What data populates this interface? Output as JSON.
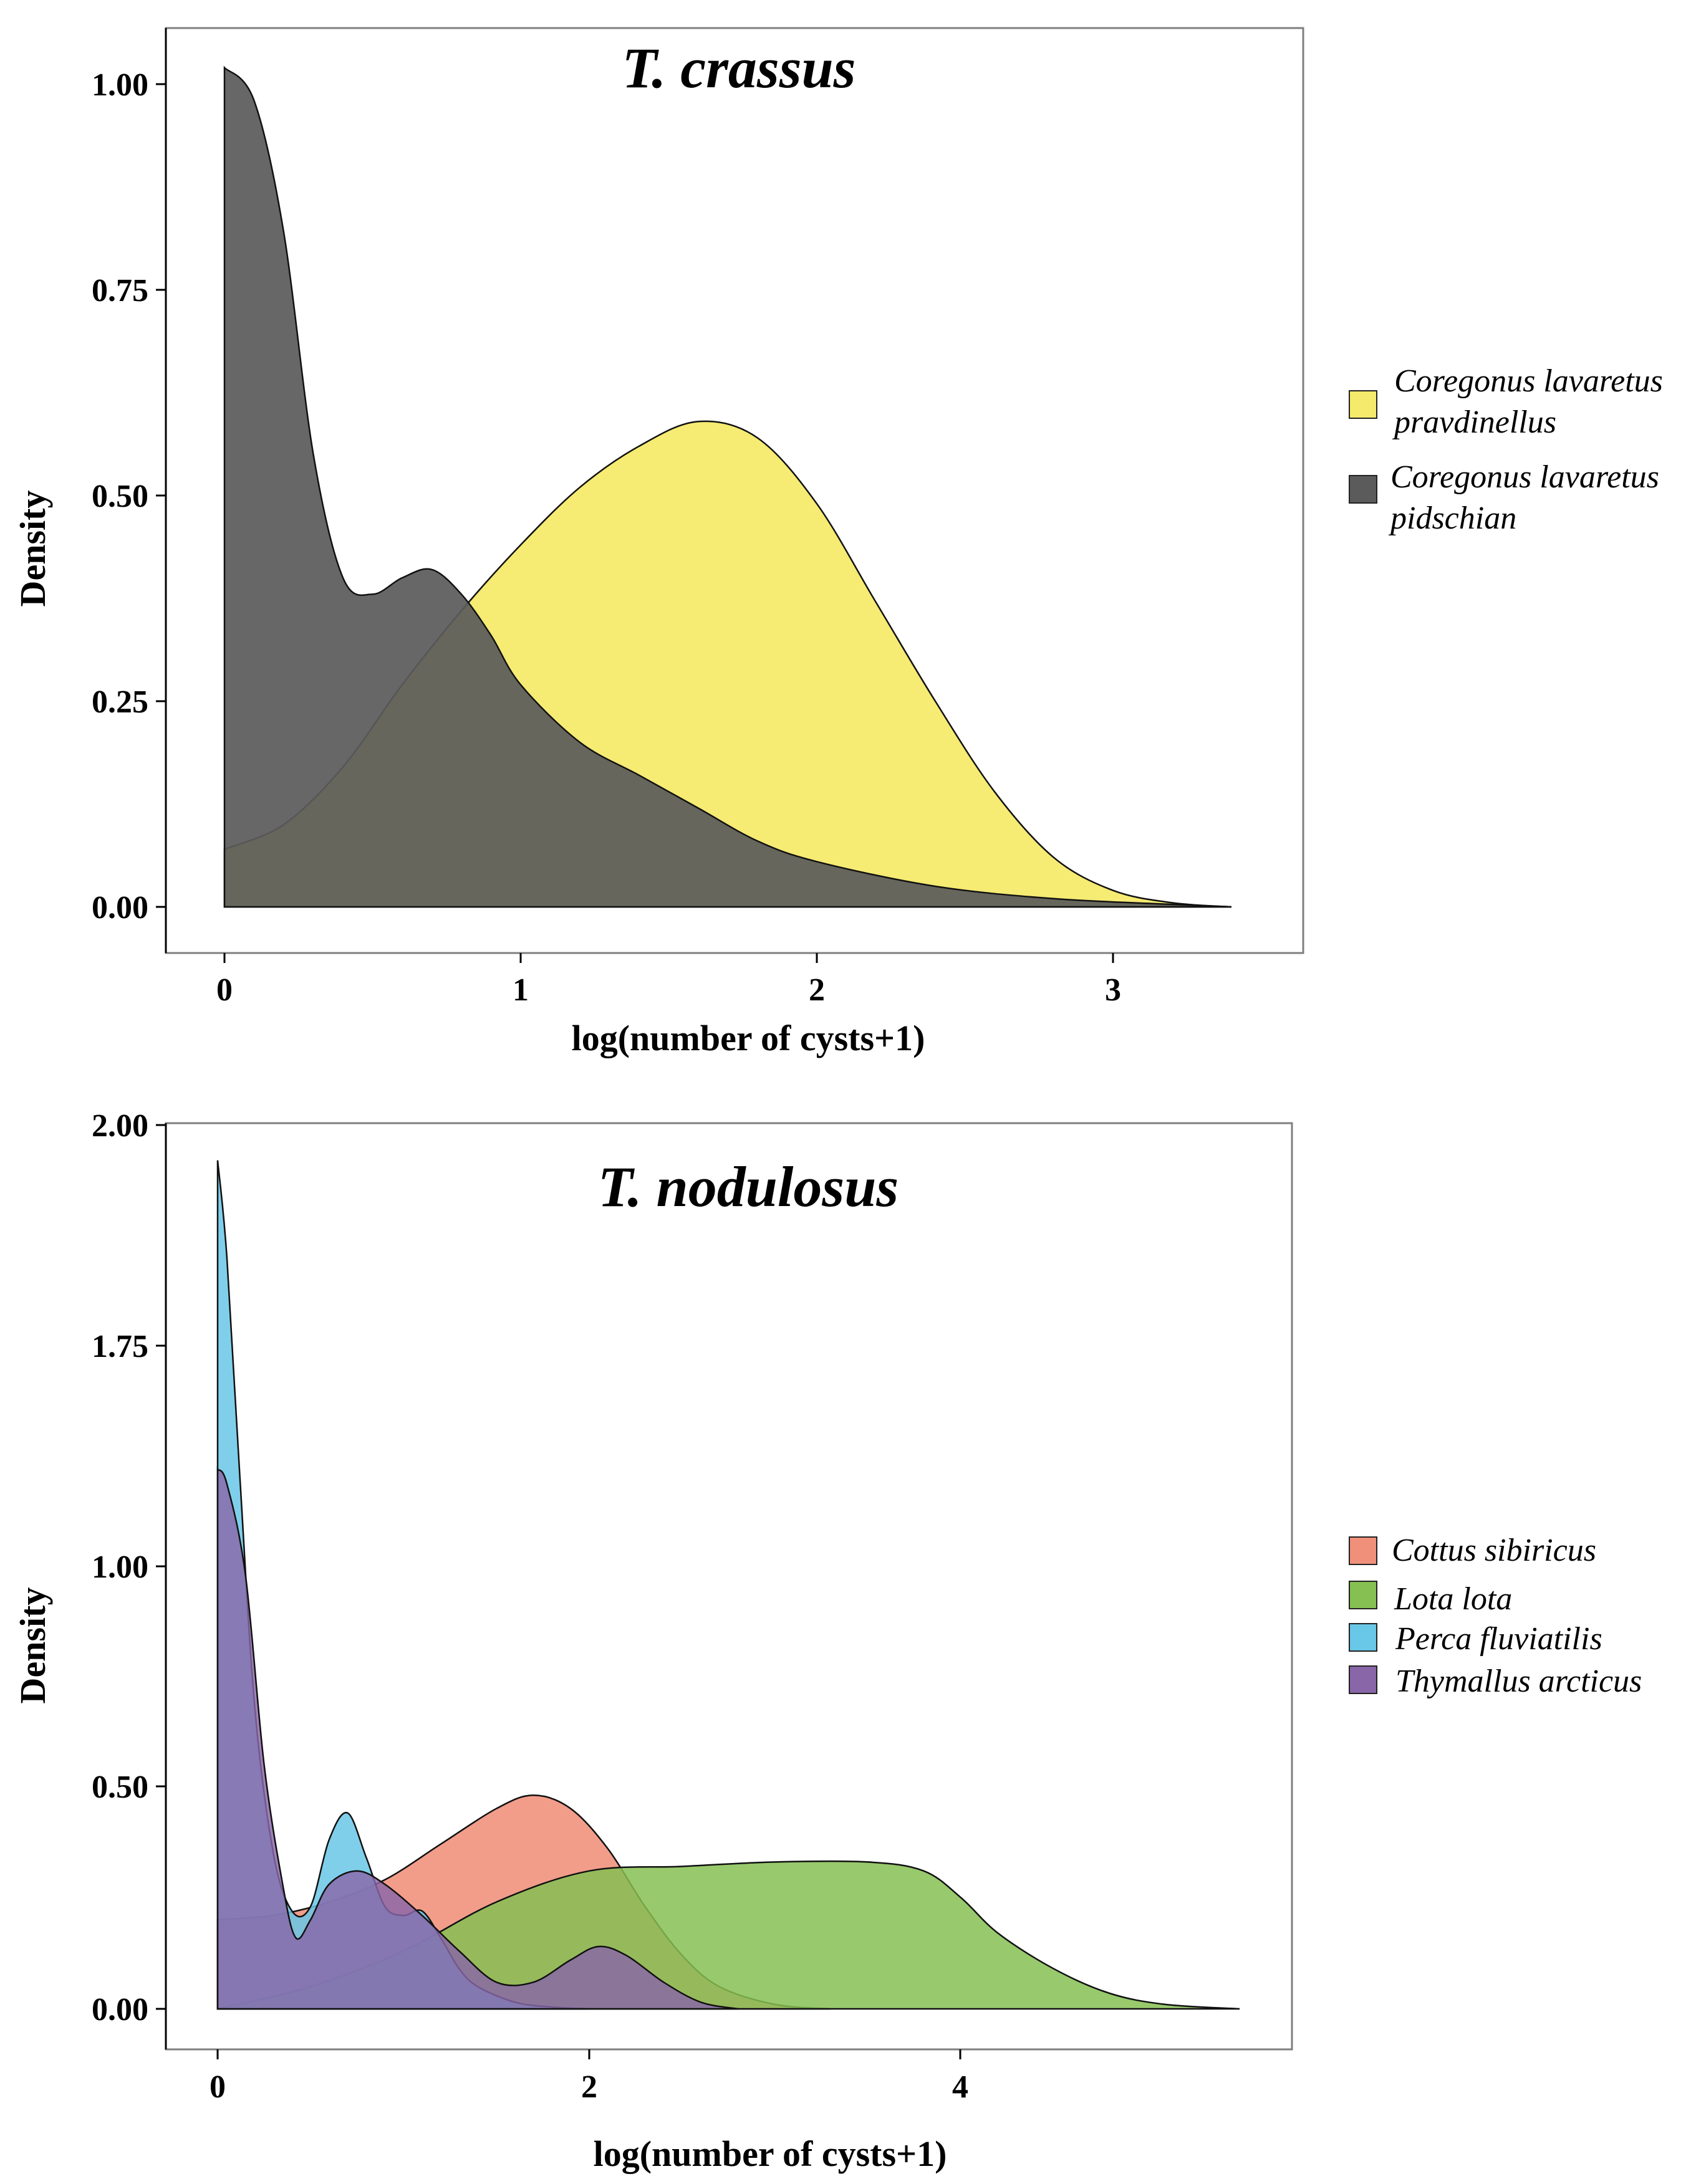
{
  "chart_data": [
    {
      "type": "area",
      "title": "T. crassus",
      "xlabel": "log(number of cysts+1)",
      "ylabel": "Density",
      "xlim": [
        -0.2,
        3.6
      ],
      "ylim": [
        -0.055,
        1.07
      ],
      "x_ticks": [
        {
          "value": 0,
          "label": "0"
        },
        {
          "value": 1,
          "label": "1"
        },
        {
          "value": 2,
          "label": "2"
        },
        {
          "value": 3,
          "label": "3"
        }
      ],
      "y_ticks": [
        {
          "value": 0,
          "label": "0.00"
        },
        {
          "value": 0.25,
          "label": "0.25"
        },
        {
          "value": 0.5,
          "label": "0.50"
        },
        {
          "value": 0.75,
          "label": "0.75"
        },
        {
          "value": 1.0,
          "label": "1.00"
        }
      ],
      "grid": false,
      "legend_position": "right",
      "series": [
        {
          "name": "Coregonus lavaretus pravdinellus",
          "legend_lines": [
            "Coregonus lavaretus",
            "pravdinellus"
          ],
          "color": "#F5EA6B",
          "x": [
            0,
            0.2,
            0.4,
            0.6,
            0.8,
            1.0,
            1.2,
            1.4,
            1.6,
            1.8,
            2.0,
            2.2,
            2.4,
            2.6,
            2.8,
            3.0,
            3.2,
            3.4
          ],
          "y": [
            0.07,
            0.1,
            0.17,
            0.27,
            0.36,
            0.44,
            0.51,
            0.56,
            0.59,
            0.57,
            0.49,
            0.37,
            0.25,
            0.14,
            0.06,
            0.02,
            0.005,
            0.0
          ]
        },
        {
          "name": "Coregonus lavaretus pidschian",
          "legend_lines": [
            "Coregonus lavaretus",
            "pidschian"
          ],
          "color": "#5B5B5B",
          "x": [
            0,
            0.1,
            0.2,
            0.3,
            0.4,
            0.5,
            0.6,
            0.7,
            0.8,
            0.9,
            1.0,
            1.2,
            1.4,
            1.6,
            1.8,
            2.0,
            2.4,
            2.8,
            3.2,
            3.4
          ],
          "y": [
            1.02,
            0.98,
            0.82,
            0.55,
            0.4,
            0.38,
            0.4,
            0.41,
            0.38,
            0.33,
            0.27,
            0.2,
            0.16,
            0.12,
            0.08,
            0.055,
            0.025,
            0.01,
            0.003,
            0.0
          ]
        }
      ]
    },
    {
      "type": "area",
      "title": "T. nodulosus",
      "xlabel": "log(number of cysts+1)",
      "ylabel": "Density",
      "xlim": [
        -0.28,
        5.8
      ],
      "ylim_visual": [
        -0.065,
        2.05
      ],
      "x_ticks": [
        {
          "value": 0,
          "label": "0"
        },
        {
          "value": 2,
          "label": "2"
        },
        {
          "value": 4,
          "label": "4"
        }
      ],
      "y_ticks": [
        {
          "value": 0,
          "label": "0.00"
        },
        {
          "value": 0.5,
          "label": "0.50"
        },
        {
          "value": 1.0,
          "label": "1.00"
        },
        {
          "value": 1.75,
          "label": "1.75"
        },
        {
          "value": 2.0,
          "label": "2.00"
        }
      ],
      "grid": false,
      "legend_position": "right",
      "series": [
        {
          "name": "Cottus sibiricus",
          "legend_lines": [
            "Cottus sibiricus"
          ],
          "color": "#F0907A",
          "x": [
            0,
            0.3,
            0.6,
            0.9,
            1.2,
            1.5,
            1.7,
            1.9,
            2.1,
            2.3,
            2.5,
            2.7,
            3.0,
            3.3
          ],
          "y": [
            0.2,
            0.21,
            0.24,
            0.29,
            0.37,
            0.45,
            0.48,
            0.45,
            0.36,
            0.23,
            0.12,
            0.05,
            0.01,
            0.0
          ]
        },
        {
          "name": "Lota lota",
          "legend_lines": [
            "Lota lota"
          ],
          "color": "#86C052",
          "x": [
            0,
            0.5,
            1.0,
            1.5,
            2.0,
            2.5,
            3.0,
            3.5,
            3.8,
            4.0,
            4.2,
            4.5,
            4.8,
            5.1,
            5.5
          ],
          "y": [
            0.0,
            0.05,
            0.13,
            0.24,
            0.31,
            0.32,
            0.33,
            0.33,
            0.31,
            0.25,
            0.17,
            0.09,
            0.035,
            0.01,
            0.0
          ]
        },
        {
          "name": "Perca fluviatilis",
          "legend_lines": [
            "Perca fluviatilis"
          ],
          "color": "#69C7E8",
          "x": [
            0,
            0.05,
            0.12,
            0.2,
            0.3,
            0.4,
            0.5,
            0.6,
            0.7,
            0.8,
            0.9,
            1.0,
            1.1,
            1.2,
            1.3,
            1.4,
            1.6,
            1.8,
            2.0
          ],
          "y": [
            1.96,
            1.85,
            1.3,
            0.68,
            0.35,
            0.22,
            0.23,
            0.38,
            0.44,
            0.34,
            0.23,
            0.21,
            0.22,
            0.16,
            0.09,
            0.05,
            0.015,
            0.004,
            0.0
          ]
        },
        {
          "name": "Thymallus arcticus",
          "legend_lines": [
            "Thymallus arcticus"
          ],
          "color": "#8966A8",
          "x": [
            0,
            0.05,
            0.15,
            0.25,
            0.35,
            0.42,
            0.5,
            0.6,
            0.75,
            0.9,
            1.1,
            1.3,
            1.5,
            1.7,
            1.9,
            2.05,
            2.2,
            2.4,
            2.6,
            2.8
          ],
          "y": [
            1.33,
            1.28,
            0.98,
            0.55,
            0.28,
            0.16,
            0.2,
            0.28,
            0.31,
            0.28,
            0.21,
            0.13,
            0.06,
            0.06,
            0.11,
            0.14,
            0.12,
            0.06,
            0.015,
            0.0
          ]
        }
      ]
    }
  ]
}
